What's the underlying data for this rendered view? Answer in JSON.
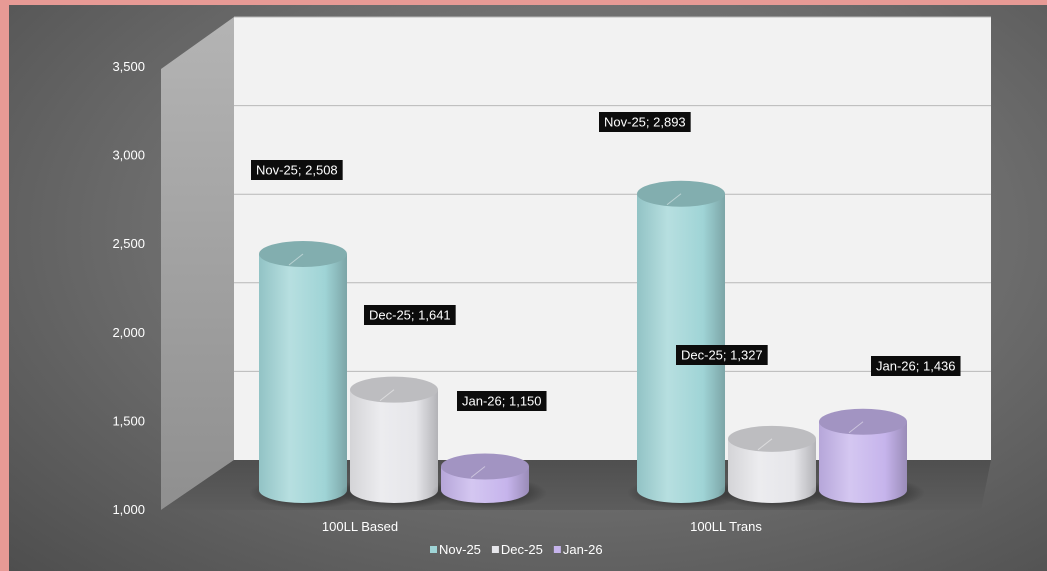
{
  "chart_data": {
    "type": "bar",
    "style": "3d-cylinder",
    "categories": [
      "100LL Based",
      "100LL Trans"
    ],
    "series": [
      {
        "name": "Nov-25",
        "values": [
          2508,
          2893
        ],
        "color": "#9fd4d6"
      },
      {
        "name": "Dec-25",
        "values": [
          1641,
          1327
        ],
        "color": "#e6e6ea"
      },
      {
        "name": "Jan-26",
        "values": [
          1150,
          1436
        ],
        "color": "#c6b4ec"
      }
    ],
    "data_labels": [
      [
        "Nov-25;  2,508",
        "Nov-25;  2,893"
      ],
      [
        "Dec-25;  1,641",
        "Dec-25;  1,327"
      ],
      [
        "Jan-26;  1,150",
        "Jan-26;  1,436"
      ]
    ],
    "yticks": [
      "1,000",
      "1,500",
      "2,000",
      "2,500",
      "3,000",
      "3,500"
    ],
    "ytick_values": [
      1000,
      1500,
      2000,
      2500,
      3000,
      3500
    ],
    "ylim": [
      1000,
      3500
    ],
    "grid": true,
    "legend": {
      "position": "bottom",
      "items": [
        "Nov-25",
        "Dec-25",
        "Jan-26"
      ]
    }
  }
}
